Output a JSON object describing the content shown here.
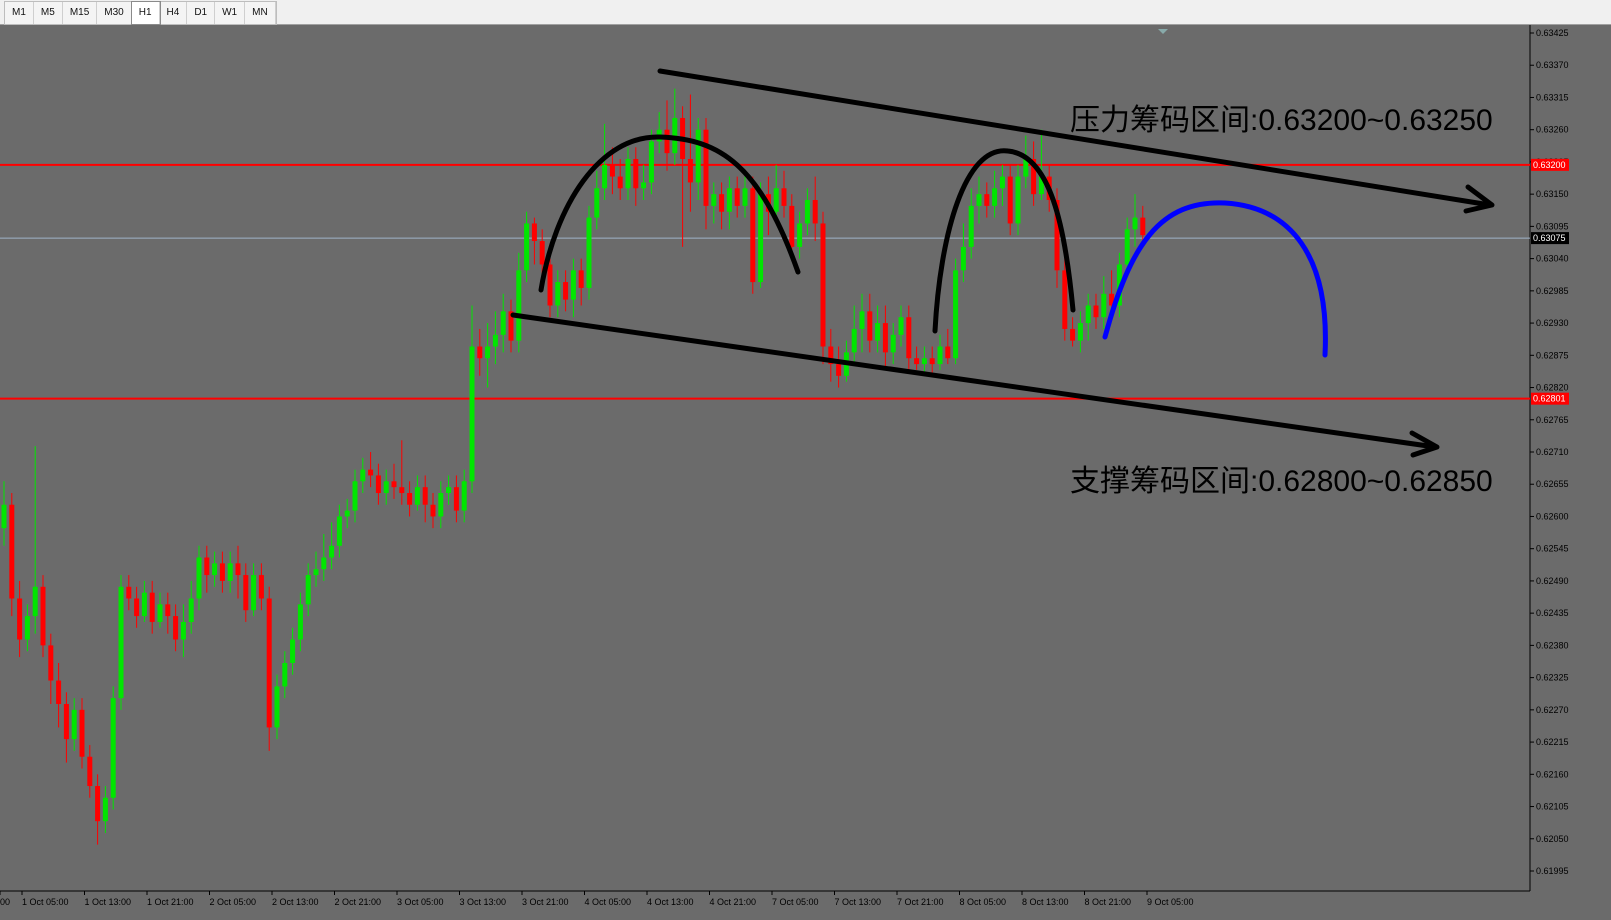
{
  "toolbar": {
    "timeframes": [
      "M1",
      "M5",
      "M15",
      "M30",
      "H1",
      "H4",
      "D1",
      "W1",
      "MN"
    ],
    "active": "H1"
  },
  "colors": {
    "background": "#6b6b6b",
    "bull": "#00e600",
    "bear": "#ff0000",
    "hline": "#ff0000",
    "current": "#9fb3c8",
    "drawing": "#000000",
    "projection": "#0000ff"
  },
  "chart_data": {
    "type": "candlestick",
    "symbol_timeframe": "H1",
    "ylim": [
      0.61995,
      0.63425
    ],
    "y_ticks": [
      "0.63425",
      "0.63370",
      "0.63315",
      "0.63260",
      "0.63205",
      "0.63150",
      "0.63095",
      "0.63040",
      "0.62985",
      "0.62930",
      "0.62875",
      "0.62820",
      "0.62765",
      "0.62710",
      "0.62655",
      "0.62600",
      "0.62545",
      "0.62490",
      "0.62435",
      "0.62380",
      "0.62325",
      "0.62270",
      "0.62215",
      "0.62160",
      "0.62105",
      "0.62050",
      "0.61995"
    ],
    "x_labels": [
      "00",
      "1 Oct 05:00",
      "1 Oct 13:00",
      "1 Oct 21:00",
      "2 Oct 05:00",
      "2 Oct 13:00",
      "2 Oct 21:00",
      "3 Oct 05:00",
      "3 Oct 13:00",
      "3 Oct 21:00",
      "4 Oct 05:00",
      "4 Oct 13:00",
      "4 Oct 21:00",
      "7 Oct 05:00",
      "7 Oct 13:00",
      "7 Oct 21:00",
      "8 Oct 05:00",
      "8 Oct 13:00",
      "8 Oct 21:00",
      "9 Oct 05:00"
    ],
    "horizontal_lines": [
      {
        "price": 0.632,
        "label": "0.63200"
      },
      {
        "price": 0.62801,
        "label": "0.62801"
      }
    ],
    "current_price": {
      "price": 0.63075,
      "label": "0.63075"
    },
    "annotations": [
      {
        "text": "压力筹码区间:0.63200~0.63250"
      },
      {
        "text": "支撑筹码区间:0.62800~0.62850"
      }
    ],
    "candles": [
      [
        0.6258,
        0.6262,
        0.6266,
        0.6255
      ],
      [
        0.6262,
        0.6246,
        0.6264,
        0.6243
      ],
      [
        0.6246,
        0.6239,
        0.6249,
        0.6236
      ],
      [
        0.6239,
        0.6243,
        0.6245,
        0.6237
      ],
      [
        0.6243,
        0.6248,
        0.6272,
        0.624
      ],
      [
        0.6248,
        0.6238,
        0.625,
        0.6236
      ],
      [
        0.6238,
        0.6232,
        0.624,
        0.6228
      ],
      [
        0.6232,
        0.6228,
        0.6235,
        0.6224
      ],
      [
        0.6228,
        0.6222,
        0.623,
        0.6218
      ],
      [
        0.6222,
        0.6227,
        0.6229,
        0.622
      ],
      [
        0.6227,
        0.6219,
        0.6229,
        0.6217
      ],
      [
        0.6219,
        0.6214,
        0.6221,
        0.6212
      ],
      [
        0.6214,
        0.6208,
        0.6216,
        0.6204
      ],
      [
        0.6208,
        0.6212,
        0.6214,
        0.6206
      ],
      [
        0.6212,
        0.6229,
        0.6231,
        0.621
      ],
      [
        0.6229,
        0.6248,
        0.625,
        0.6227
      ],
      [
        0.6248,
        0.6246,
        0.625,
        0.6244
      ],
      [
        0.6246,
        0.6243,
        0.6248,
        0.6241
      ],
      [
        0.6243,
        0.6247,
        0.6249,
        0.6242
      ],
      [
        0.6247,
        0.6242,
        0.6249,
        0.624
      ],
      [
        0.6242,
        0.6245,
        0.6247,
        0.6241
      ],
      [
        0.6245,
        0.6243,
        0.6247,
        0.624
      ],
      [
        0.6243,
        0.6239,
        0.6245,
        0.6237
      ],
      [
        0.6239,
        0.6242,
        0.6245,
        0.6236
      ],
      [
        0.6242,
        0.6246,
        0.6249,
        0.624
      ],
      [
        0.6246,
        0.6253,
        0.6255,
        0.6244
      ],
      [
        0.6253,
        0.625,
        0.6255,
        0.6247
      ],
      [
        0.625,
        0.6252,
        0.6254,
        0.6248
      ],
      [
        0.6252,
        0.6249,
        0.6254,
        0.6247
      ],
      [
        0.6249,
        0.6252,
        0.6254,
        0.6247
      ],
      [
        0.6252,
        0.625,
        0.6255,
        0.6246
      ],
      [
        0.625,
        0.6244,
        0.6252,
        0.6242
      ],
      [
        0.6244,
        0.625,
        0.6252,
        0.6243
      ],
      [
        0.625,
        0.6246,
        0.6252,
        0.6244
      ],
      [
        0.6246,
        0.6224,
        0.6248,
        0.622
      ],
      [
        0.6224,
        0.6231,
        0.6233,
        0.6222
      ],
      [
        0.6231,
        0.6235,
        0.6237,
        0.6229
      ],
      [
        0.6235,
        0.6239,
        0.6241,
        0.6233
      ],
      [
        0.6239,
        0.6245,
        0.6247,
        0.6237
      ],
      [
        0.6245,
        0.625,
        0.6252,
        0.6243
      ],
      [
        0.625,
        0.6251,
        0.6254,
        0.6248
      ],
      [
        0.6251,
        0.6253,
        0.6257,
        0.6249
      ],
      [
        0.6253,
        0.6255,
        0.6259,
        0.6251
      ],
      [
        0.6255,
        0.626,
        0.6262,
        0.6253
      ],
      [
        0.626,
        0.6261,
        0.6263,
        0.6258
      ],
      [
        0.6261,
        0.6266,
        0.6268,
        0.6259
      ],
      [
        0.6266,
        0.6268,
        0.627,
        0.6264
      ],
      [
        0.6268,
        0.6267,
        0.6271,
        0.6265
      ],
      [
        0.6267,
        0.6264,
        0.6269,
        0.6262
      ],
      [
        0.6264,
        0.6266,
        0.6268,
        0.6262
      ],
      [
        0.6266,
        0.6265,
        0.6269,
        0.6263
      ],
      [
        0.6265,
        0.6264,
        0.6273,
        0.6262
      ],
      [
        0.6264,
        0.6262,
        0.6266,
        0.626
      ],
      [
        0.6262,
        0.6265,
        0.6267,
        0.6261
      ],
      [
        0.6265,
        0.6262,
        0.6267,
        0.6259
      ],
      [
        0.6262,
        0.626,
        0.6264,
        0.6258
      ],
      [
        0.626,
        0.6264,
        0.6266,
        0.6258
      ],
      [
        0.6264,
        0.6265,
        0.6267,
        0.6262
      ],
      [
        0.6265,
        0.6261,
        0.6267,
        0.6259
      ],
      [
        0.6261,
        0.6266,
        0.6268,
        0.6259
      ],
      [
        0.6266,
        0.6289,
        0.6296,
        0.6264
      ],
      [
        0.6289,
        0.6287,
        0.6292,
        0.6284
      ],
      [
        0.6287,
        0.6289,
        0.6293,
        0.6282
      ],
      [
        0.6289,
        0.6291,
        0.6295,
        0.6286
      ],
      [
        0.6291,
        0.6295,
        0.6298,
        0.6288
      ],
      [
        0.6295,
        0.629,
        0.6297,
        0.6288
      ],
      [
        0.629,
        0.6302,
        0.6305,
        0.6288
      ],
      [
        0.6302,
        0.631,
        0.6312,
        0.63
      ],
      [
        0.631,
        0.6307,
        0.6311,
        0.6303
      ],
      [
        0.6307,
        0.6303,
        0.6309,
        0.6299
      ],
      [
        0.6303,
        0.6296,
        0.6305,
        0.6294
      ],
      [
        0.6296,
        0.63,
        0.6302,
        0.6294
      ],
      [
        0.63,
        0.6297,
        0.6302,
        0.6295
      ],
      [
        0.6297,
        0.6302,
        0.6304,
        0.6294
      ],
      [
        0.6302,
        0.6299,
        0.6304,
        0.6296
      ],
      [
        0.6299,
        0.6311,
        0.6313,
        0.6297
      ],
      [
        0.6311,
        0.6316,
        0.6319,
        0.6309
      ],
      [
        0.6316,
        0.632,
        0.6327,
        0.6314
      ],
      [
        0.632,
        0.6318,
        0.6323,
        0.6315
      ],
      [
        0.6318,
        0.6316,
        0.6321,
        0.6314
      ],
      [
        0.6316,
        0.6321,
        0.6323,
        0.6314
      ],
      [
        0.6321,
        0.6316,
        0.6323,
        0.6313
      ],
      [
        0.6316,
        0.6317,
        0.632,
        0.6314
      ],
      [
        0.6317,
        0.6324,
        0.6326,
        0.6315
      ],
      [
        0.6324,
        0.6326,
        0.6329,
        0.6322
      ],
      [
        0.6326,
        0.6322,
        0.6331,
        0.6319
      ],
      [
        0.6322,
        0.6328,
        0.6333,
        0.632
      ],
      [
        0.6328,
        0.6321,
        0.633,
        0.6306
      ],
      [
        0.6321,
        0.6317,
        0.6332,
        0.6312
      ],
      [
        0.6317,
        0.6326,
        0.6328,
        0.6314
      ],
      [
        0.6326,
        0.6313,
        0.6328,
        0.6309
      ],
      [
        0.6313,
        0.6315,
        0.6317,
        0.631
      ],
      [
        0.6315,
        0.6312,
        0.6317,
        0.6309
      ],
      [
        0.6312,
        0.6316,
        0.6318,
        0.6309
      ],
      [
        0.6316,
        0.6313,
        0.6318,
        0.6311
      ],
      [
        0.6313,
        0.6316,
        0.6318,
        0.6311
      ],
      [
        0.6316,
        0.63,
        0.6318,
        0.6298
      ],
      [
        0.63,
        0.6315,
        0.6317,
        0.6299
      ],
      [
        0.6315,
        0.6312,
        0.6318,
        0.6308
      ],
      [
        0.6312,
        0.6316,
        0.632,
        0.631
      ],
      [
        0.6316,
        0.6313,
        0.6319,
        0.6311
      ],
      [
        0.6313,
        0.6306,
        0.6315,
        0.6304
      ],
      [
        0.6306,
        0.631,
        0.6312,
        0.6304
      ],
      [
        0.631,
        0.6314,
        0.6316,
        0.6308
      ],
      [
        0.6314,
        0.631,
        0.6318,
        0.6307
      ],
      [
        0.631,
        0.6289,
        0.6312,
        0.6286
      ],
      [
        0.6289,
        0.6286,
        0.6292,
        0.6283
      ],
      [
        0.6286,
        0.6284,
        0.6289,
        0.6282
      ],
      [
        0.6284,
        0.6288,
        0.629,
        0.6283
      ],
      [
        0.6288,
        0.6292,
        0.6296,
        0.6286
      ],
      [
        0.6292,
        0.6295,
        0.6298,
        0.6288
      ],
      [
        0.6295,
        0.629,
        0.6298,
        0.6288
      ],
      [
        0.629,
        0.6293,
        0.6296,
        0.6288
      ],
      [
        0.6293,
        0.6288,
        0.6296,
        0.6285
      ],
      [
        0.6288,
        0.6291,
        0.6293,
        0.6286
      ],
      [
        0.6291,
        0.6294,
        0.6296,
        0.6289
      ],
      [
        0.6294,
        0.6287,
        0.6296,
        0.6285
      ],
      [
        0.6287,
        0.6286,
        0.6289,
        0.6285
      ],
      [
        0.6286,
        0.6287,
        0.6289,
        0.6284
      ],
      [
        0.6287,
        0.6286,
        0.6289,
        0.6284
      ],
      [
        0.6286,
        0.6289,
        0.6291,
        0.6285
      ],
      [
        0.6289,
        0.6287,
        0.6292,
        0.6286
      ],
      [
        0.6287,
        0.6302,
        0.6304,
        0.6286
      ],
      [
        0.6302,
        0.6306,
        0.631,
        0.63
      ],
      [
        0.6306,
        0.6313,
        0.6316,
        0.6304
      ],
      [
        0.6313,
        0.6315,
        0.6318,
        0.631
      ],
      [
        0.6315,
        0.6313,
        0.6317,
        0.6311
      ],
      [
        0.6313,
        0.6316,
        0.6319,
        0.6311
      ],
      [
        0.6316,
        0.6318,
        0.632,
        0.6313
      ],
      [
        0.6318,
        0.631,
        0.632,
        0.6308
      ],
      [
        0.631,
        0.6318,
        0.632,
        0.6308
      ],
      [
        0.6318,
        0.6321,
        0.6325,
        0.6316
      ],
      [
        0.6321,
        0.6315,
        0.6324,
        0.6313
      ],
      [
        0.6315,
        0.6318,
        0.6326,
        0.6314
      ],
      [
        0.6318,
        0.6314,
        0.632,
        0.6312
      ],
      [
        0.6314,
        0.6302,
        0.6316,
        0.6299
      ],
      [
        0.6302,
        0.6292,
        0.6304,
        0.629
      ],
      [
        0.6292,
        0.629,
        0.6294,
        0.6289
      ],
      [
        0.629,
        0.6293,
        0.6295,
        0.6288
      ],
      [
        0.6293,
        0.6296,
        0.6298,
        0.629
      ],
      [
        0.6296,
        0.6294,
        0.6298,
        0.6292
      ],
      [
        0.6294,
        0.6298,
        0.6301,
        0.6292
      ],
      [
        0.6298,
        0.6296,
        0.6302,
        0.6294
      ],
      [
        0.6296,
        0.6303,
        0.6305,
        0.6294
      ],
      [
        0.6303,
        0.6309,
        0.6311,
        0.6301
      ],
      [
        0.6309,
        0.6311,
        0.6315,
        0.6306
      ],
      [
        0.6311,
        0.6308,
        0.6313,
        0.6306
      ]
    ]
  }
}
